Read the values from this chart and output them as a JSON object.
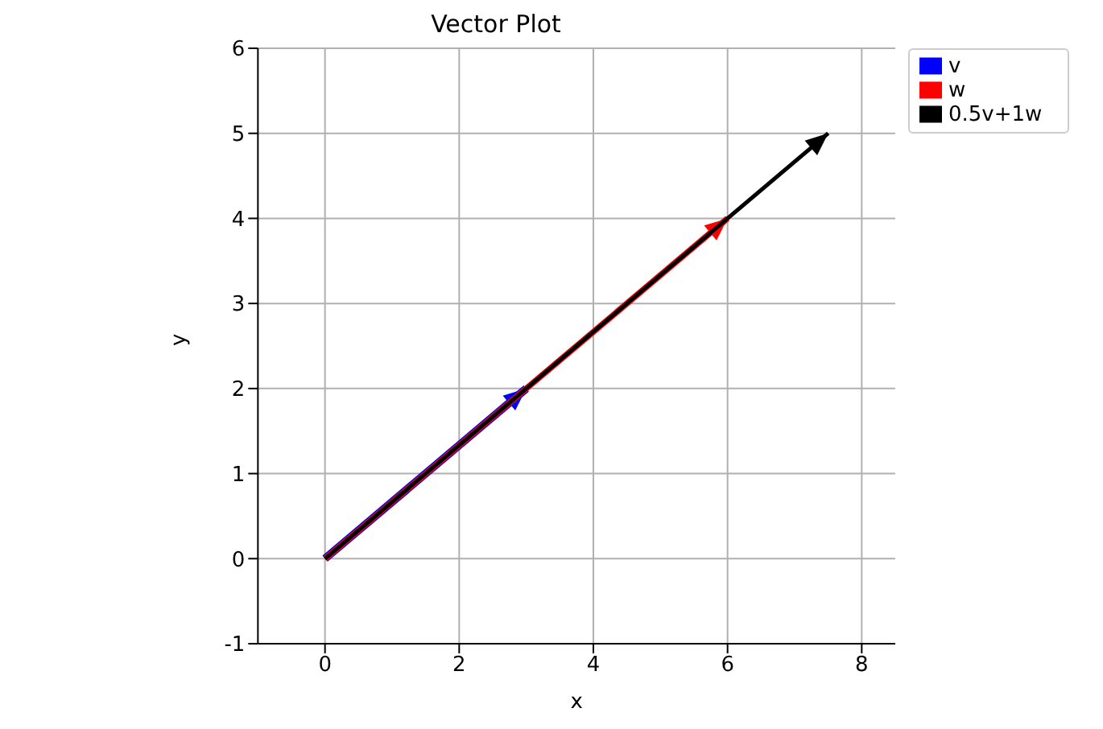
{
  "chart_data": {
    "type": "line",
    "title": "Vector Plot",
    "xlabel": "x",
    "ylabel": "y",
    "xlim": [
      -1,
      8.5
    ],
    "ylim": [
      -1,
      6
    ],
    "xticks": [
      0,
      2,
      4,
      6,
      8
    ],
    "yticks": [
      -1,
      0,
      1,
      2,
      3,
      4,
      5,
      6
    ],
    "grid": true,
    "legend": "top right",
    "series": [
      {
        "name": "v",
        "color": "#0000ff",
        "x": [
          0,
          3
        ],
        "values": [
          0,
          2
        ]
      },
      {
        "name": "w",
        "color": "#ff0000",
        "x": [
          0,
          6
        ],
        "values": [
          0,
          4
        ]
      },
      {
        "name": "0.5v+1w",
        "color": "#000000",
        "x": [
          0,
          7.5
        ],
        "values": [
          0,
          5
        ]
      }
    ]
  }
}
